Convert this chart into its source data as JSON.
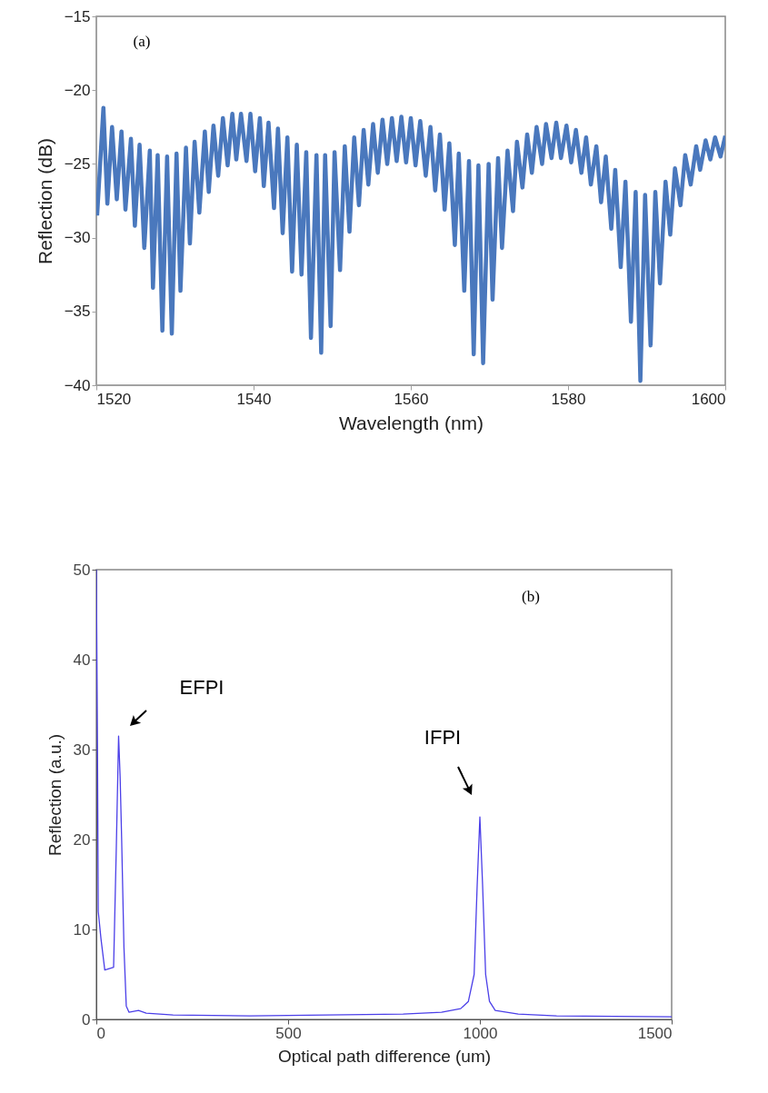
{
  "chart_data": [
    {
      "type": "line",
      "xlabel": "Wavelength (nm)",
      "ylabel": "Reflection (dB)",
      "xlim": [
        1520,
        1600
      ],
      "ylim": [
        -40,
        -15
      ],
      "xticks": [
        1520,
        1540,
        1560,
        1580,
        1600
      ],
      "yticks": [
        -40,
        -35,
        -30,
        -25,
        -20,
        -15
      ],
      "grid": false,
      "annotations": [
        "(a)"
      ],
      "series": [
        {
          "color": "#4a78bd",
          "x": [
            1520.1,
            1520.9,
            1521.4,
            1522.0,
            1522.6,
            1523.2,
            1523.7,
            1524.4,
            1524.9,
            1525.5,
            1526.1,
            1526.8,
            1527.2,
            1527.8,
            1528.4,
            1529.0,
            1529.6,
            1530.2,
            1530.7,
            1531.4,
            1531.9,
            1532.5,
            1533.1,
            1533.8,
            1534.3,
            1534.9,
            1535.5,
            1536.1,
            1536.7,
            1537.3,
            1537.8,
            1538.4,
            1539.1,
            1539.6,
            1540.2,
            1540.8,
            1541.3,
            1541.9,
            1542.6,
            1543.1,
            1543.7,
            1544.3,
            1544.9,
            1545.5,
            1546.1,
            1546.7,
            1547.3,
            1548.0,
            1548.6,
            1549.1,
            1549.8,
            1550.3,
            1551.0,
            1551.6,
            1552.2,
            1552.8,
            1553.4,
            1554.0,
            1554.6,
            1555.2,
            1555.8,
            1556.4,
            1557.0,
            1557.6,
            1558.2,
            1558.8,
            1559.4,
            1560.0,
            1560.6,
            1561.2,
            1561.9,
            1562.5,
            1563.1,
            1563.7,
            1564.3,
            1564.9,
            1565.6,
            1566.1,
            1566.8,
            1567.4,
            1568.0,
            1568.6,
            1569.2,
            1569.9,
            1570.4,
            1571.1,
            1571.6,
            1572.3,
            1573.0,
            1573.5,
            1574.2,
            1574.8,
            1575.4,
            1576.0,
            1576.7,
            1577.2,
            1577.9,
            1578.5,
            1579.1,
            1579.8,
            1580.4,
            1581.0,
            1581.7,
            1582.3,
            1582.9,
            1583.6,
            1584.2,
            1584.8,
            1585.5,
            1586.0,
            1586.7,
            1587.3,
            1588.0,
            1588.6,
            1589.2,
            1589.8,
            1590.5,
            1591.1,
            1591.7,
            1592.4,
            1593.0,
            1593.6,
            1594.3,
            1594.9,
            1595.6,
            1596.3,
            1596.8,
            1597.5,
            1598.1,
            1598.7,
            1599.4,
            1600.0
          ],
          "values": [
            -28.5,
            -21.2,
            -27.7,
            -22.5,
            -27.4,
            -22.8,
            -28.1,
            -23.3,
            -29.2,
            -23.7,
            -30.7,
            -24.1,
            -33.4,
            -24.4,
            -36.3,
            -24.5,
            -36.5,
            -24.3,
            -33.6,
            -23.9,
            -30.4,
            -23.5,
            -28.3,
            -22.8,
            -26.9,
            -22.4,
            -25.8,
            -21.9,
            -25.1,
            -21.6,
            -24.7,
            -21.6,
            -24.8,
            -21.6,
            -25.5,
            -21.9,
            -26.5,
            -22.2,
            -28.0,
            -22.6,
            -29.7,
            -23.2,
            -32.3,
            -23.7,
            -32.5,
            -24.2,
            -36.8,
            -24.4,
            -37.8,
            -24.4,
            -36.0,
            -24.2,
            -32.2,
            -23.8,
            -29.6,
            -23.2,
            -27.8,
            -22.7,
            -26.4,
            -22.3,
            -25.6,
            -22.0,
            -25.0,
            -21.9,
            -24.8,
            -21.8,
            -24.9,
            -21.9,
            -25.1,
            -22.1,
            -25.8,
            -22.5,
            -26.8,
            -23.0,
            -28.1,
            -23.6,
            -30.5,
            -24.3,
            -33.6,
            -24.8,
            -37.9,
            -25.1,
            -38.5,
            -25.0,
            -34.2,
            -24.6,
            -30.7,
            -24.1,
            -28.2,
            -23.5,
            -26.6,
            -23.0,
            -25.6,
            -22.5,
            -25.0,
            -22.3,
            -24.6,
            -22.2,
            -24.6,
            -22.4,
            -24.9,
            -22.7,
            -25.6,
            -23.2,
            -26.4,
            -23.8,
            -27.6,
            -24.5,
            -29.4,
            -25.4,
            -32.0,
            -26.2,
            -35.7,
            -26.9,
            -39.7,
            -27.1,
            -37.3,
            -26.9,
            -33.1,
            -26.2,
            -29.8,
            -25.3,
            -27.8,
            -24.4,
            -26.4,
            -23.8,
            -25.4,
            -23.4,
            -24.7,
            -23.2,
            -24.5,
            -23.1
          ]
        }
      ]
    },
    {
      "type": "line",
      "xlabel": "Optical path difference (um)",
      "ylabel": "Reflection (a.u.)",
      "xlim": [
        0,
        1500
      ],
      "ylim": [
        0,
        50
      ],
      "xticks": [
        0,
        500,
        1000,
        1500
      ],
      "yticks": [
        0,
        10,
        20,
        30,
        40,
        50
      ],
      "grid": false,
      "annotations": [
        "(b)",
        "EFPI",
        "IFPI"
      ],
      "series": [
        {
          "color": "#4b3fe8",
          "x": [
            0,
            3,
            5,
            12,
            22,
            45,
            52,
            58,
            62,
            66,
            72,
            78,
            85,
            110,
            130,
            200,
            400,
            600,
            800,
            900,
            950,
            970,
            985,
            993,
            1000,
            1007,
            1015,
            1025,
            1040,
            1100,
            1200,
            1500
          ],
          "values": [
            50,
            30,
            12,
            9,
            5.5,
            5.8,
            19,
            31.5,
            27,
            20,
            8,
            1.5,
            0.8,
            1.0,
            0.7,
            0.5,
            0.4,
            0.5,
            0.6,
            0.8,
            1.2,
            2.0,
            5,
            15,
            22.5,
            15,
            5,
            2,
            1,
            0.6,
            0.4,
            0.3
          ]
        }
      ]
    }
  ]
}
